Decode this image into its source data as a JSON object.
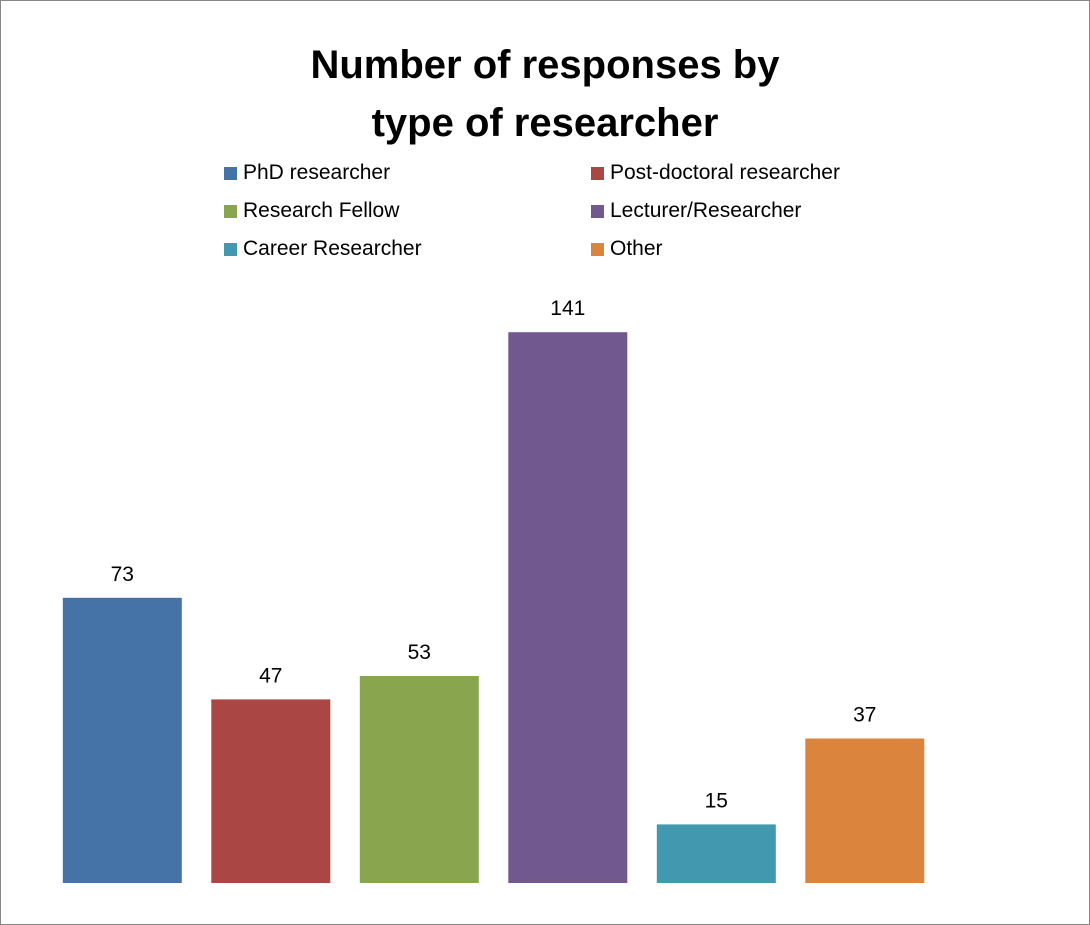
{
  "chart_data": {
    "type": "bar",
    "title": "Number of responses by type of researcher",
    "xlabel": "",
    "ylabel": "",
    "categories": [
      "PhD researcher",
      "Post-doctoral researcher",
      "Research Fellow",
      "Lecturer/Researcher",
      "Career Researcher",
      "Other"
    ],
    "values": [
      73,
      47,
      53,
      141,
      15,
      37
    ],
    "data_labels": [
      "73",
      "47",
      "53",
      "141",
      "15",
      "37"
    ],
    "colors": [
      "#4572A7",
      "#AA4643",
      "#89A54E",
      "#71588F",
      "#4198AF",
      "#DB843D"
    ],
    "ylim": [
      0,
      160
    ],
    "grid": false,
    "legend": "top"
  }
}
